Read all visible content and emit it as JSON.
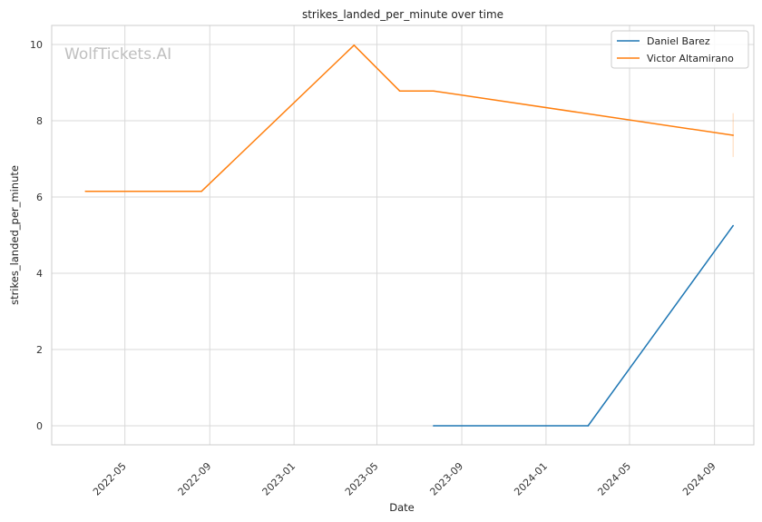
{
  "watermark": "WolfTickets.AI",
  "chart_data": {
    "type": "line",
    "title": "strikes_landed_per_minute over time",
    "xlabel": "Date",
    "ylabel": "strikes_landed_per_minute",
    "x_ticks": [
      "2022-05",
      "2022-09",
      "2023-01",
      "2023-05",
      "2023-09",
      "2024-01",
      "2024-05",
      "2024-09"
    ],
    "x_range": [
      "2022-01-15",
      "2024-10-28"
    ],
    "y_ticks": [
      0,
      2,
      4,
      6,
      8,
      10
    ],
    "ylim": [
      -0.5,
      10.5
    ],
    "grid": true,
    "legend_position": "top-right",
    "series": [
      {
        "name": "Daniel Barez",
        "color": "#1f77b4",
        "points": [
          {
            "x": "2023-07-22",
            "y": 0.0
          },
          {
            "x": "2024-03-02",
            "y": 0.0
          },
          {
            "x": "2024-09-28",
            "y": 5.25
          }
        ]
      },
      {
        "name": "Victor Altamirano",
        "color": "#ff7f0e",
        "points": [
          {
            "x": "2022-03-05",
            "y": 6.15
          },
          {
            "x": "2022-08-20",
            "y": 6.15
          },
          {
            "x": "2023-03-29",
            "y": 9.98
          },
          {
            "x": "2023-06-03",
            "y": 8.78
          },
          {
            "x": "2023-07-22",
            "y": 8.78
          },
          {
            "x": "2024-09-28",
            "y": 7.62
          }
        ],
        "error_bar": {
          "x": "2024-09-28",
          "low": 7.05,
          "high": 8.2
        }
      }
    ]
  }
}
